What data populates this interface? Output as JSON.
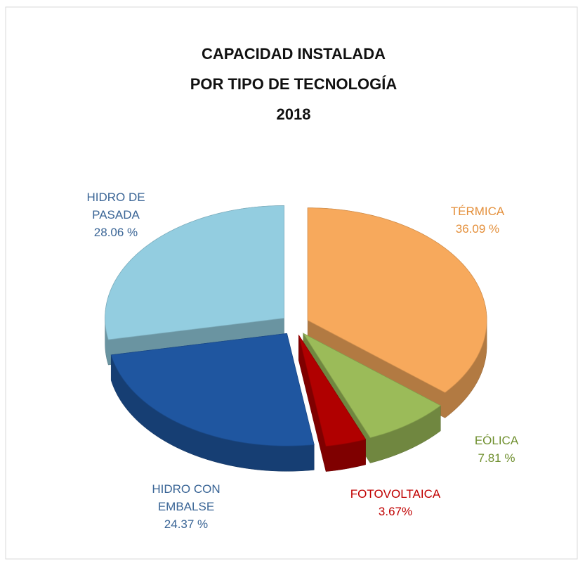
{
  "chart_data": {
    "type": "pie",
    "title": [
      "CAPACIDAD INSTALADA",
      "POR  TIPO DE TECNOLOGÍA",
      "2018"
    ],
    "categories": [
      "TÉRMICA",
      "EÓLICA",
      "FOTOVOLTAICA",
      "HIDRO CON EMBALSE",
      "HIDRO DE PASADA"
    ],
    "values": [
      36.09,
      7.81,
      3.67,
      24.37,
      28.06
    ],
    "value_labels": [
      "36.09 %",
      "7.81 %",
      "3.67%",
      "24.37 %",
      "28.06 %"
    ],
    "colors": [
      "#f7a95c",
      "#9bbb59",
      "#b00000",
      "#1f56a0",
      "#93cde0"
    ],
    "label_colors": [
      "#e48f3a",
      "#6f8f2e",
      "#c00000",
      "#3a6596",
      "#3a6596"
    ]
  }
}
